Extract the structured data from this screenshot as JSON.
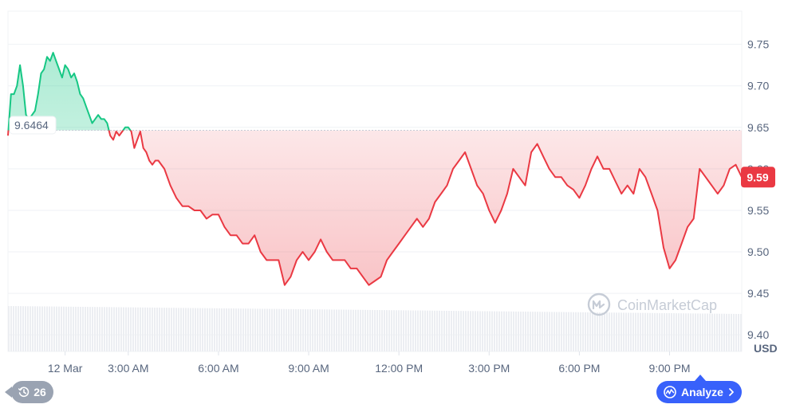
{
  "currency_label": "USD",
  "watermark": "CoinMarketCap",
  "open_price_label": "9.6464",
  "current_price_label": "9.59",
  "history_count": "26",
  "analyze_label": "Analyze",
  "colors": {
    "up": "#16c784",
    "down": "#ea3943",
    "accent": "#3861fb",
    "grid": "#eff2f5",
    "axis_text": "#58667e"
  },
  "icons": {
    "history": "history-clock-icon",
    "analyze": "analyze-pulse-icon",
    "chevron": "chevron-right-icon",
    "logo": "coinmarketcap-logo-icon"
  },
  "chart_data": {
    "type": "line",
    "title": "",
    "xlabel": "",
    "ylabel": "USD",
    "baseline": 9.6464,
    "current": 9.59,
    "ylim": [
      9.38,
      9.79
    ],
    "y_ticks": [
      9.75,
      9.7,
      9.65,
      9.6,
      9.55,
      9.5,
      9.45,
      9.4
    ],
    "y_tick_labels": [
      "9.75",
      "9.70",
      "9.65",
      "9.60",
      "9.55",
      "9.50",
      "9.45",
      "9.40"
    ],
    "x_ticks": [
      0.9,
      3,
      6,
      9,
      12,
      15,
      18,
      21
    ],
    "x_tick_labels": [
      "12 Mar",
      "3:00 AM",
      "6:00 AM",
      "9:00 AM",
      "12:00 PM",
      "3:00 PM",
      "6:00 PM",
      "9:00 PM"
    ],
    "xlim": [
      -1.0,
      23.4
    ],
    "grid": true,
    "legend": "none",
    "series": [
      {
        "x": [
          -1.0,
          -0.9,
          -0.8,
          -0.7,
          -0.6,
          -0.5,
          -0.4,
          -0.3,
          -0.2,
          -0.1,
          0.0,
          0.1,
          0.2,
          0.3,
          0.4,
          0.5,
          0.6,
          0.7,
          0.8,
          0.9,
          1.0,
          1.1,
          1.2,
          1.3,
          1.4,
          1.5,
          1.6,
          1.7,
          1.8,
          1.9,
          2.0,
          2.1,
          2.2,
          2.3,
          2.4,
          2.5,
          2.6,
          2.7,
          2.8,
          2.9,
          3.0,
          3.1,
          3.2,
          3.3,
          3.4,
          3.5,
          3.6,
          3.7,
          3.8,
          3.9,
          4.0,
          4.2,
          4.4,
          4.6,
          4.8,
          5.0,
          5.2,
          5.4,
          5.6,
          5.8,
          6.0,
          6.2,
          6.4,
          6.6,
          6.8,
          7.0,
          7.2,
          7.4,
          7.6,
          7.8,
          8.0,
          8.2,
          8.4,
          8.6,
          8.8,
          9.0,
          9.2,
          9.4,
          9.6,
          9.8,
          10.0,
          10.2,
          10.4,
          10.6,
          10.8,
          11.0,
          11.2,
          11.4,
          11.6,
          11.8,
          12.0,
          12.2,
          12.4,
          12.6,
          12.8,
          13.0,
          13.2,
          13.4,
          13.6,
          13.8,
          14.0,
          14.2,
          14.4,
          14.6,
          14.8,
          15.0,
          15.2,
          15.4,
          15.6,
          15.8,
          16.0,
          16.2,
          16.4,
          16.6,
          16.8,
          17.0,
          17.2,
          17.4,
          17.6,
          17.8,
          18.0,
          18.2,
          18.4,
          18.6,
          18.8,
          19.0,
          19.2,
          19.4,
          19.6,
          19.8,
          20.0,
          20.2,
          20.4,
          20.6,
          20.8,
          21.0,
          21.2,
          21.4,
          21.6,
          21.8,
          22.0,
          22.2,
          22.4,
          22.6,
          22.8,
          23.0,
          23.2,
          23.4
        ],
        "values": [
          9.64,
          9.69,
          9.69,
          9.7,
          9.725,
          9.7,
          9.665,
          9.66,
          9.665,
          9.67,
          9.69,
          9.715,
          9.72,
          9.735,
          9.73,
          9.74,
          9.73,
          9.72,
          9.71,
          9.725,
          9.72,
          9.71,
          9.715,
          9.705,
          9.69,
          9.685,
          9.675,
          9.665,
          9.655,
          9.66,
          9.665,
          9.66,
          9.66,
          9.655,
          9.64,
          9.635,
          9.645,
          9.64,
          9.645,
          9.65,
          9.65,
          9.645,
          9.625,
          9.635,
          9.645,
          9.625,
          9.62,
          9.61,
          9.605,
          9.61,
          9.61,
          9.6,
          9.58,
          9.565,
          9.555,
          9.555,
          9.55,
          9.55,
          9.54,
          9.545,
          9.545,
          9.53,
          9.52,
          9.52,
          9.51,
          9.51,
          9.52,
          9.5,
          9.49,
          9.49,
          9.49,
          9.46,
          9.47,
          9.49,
          9.5,
          9.49,
          9.5,
          9.515,
          9.5,
          9.49,
          9.49,
          9.49,
          9.48,
          9.48,
          9.47,
          9.46,
          9.465,
          9.47,
          9.49,
          9.5,
          9.51,
          9.52,
          9.53,
          9.54,
          9.53,
          9.54,
          9.56,
          9.57,
          9.58,
          9.6,
          9.61,
          9.62,
          9.6,
          9.58,
          9.57,
          9.55,
          9.535,
          9.55,
          9.57,
          9.6,
          9.59,
          9.58,
          9.62,
          9.63,
          9.615,
          9.6,
          9.59,
          9.59,
          9.58,
          9.575,
          9.565,
          9.58,
          9.6,
          9.615,
          9.6,
          9.6,
          9.585,
          9.57,
          9.58,
          9.57,
          9.6,
          9.59,
          9.57,
          9.55,
          9.505,
          9.48,
          9.49,
          9.51,
          9.53,
          9.54,
          9.6,
          9.59,
          9.58,
          9.57,
          9.58,
          9.6,
          9.605,
          9.59
        ]
      }
    ]
  }
}
